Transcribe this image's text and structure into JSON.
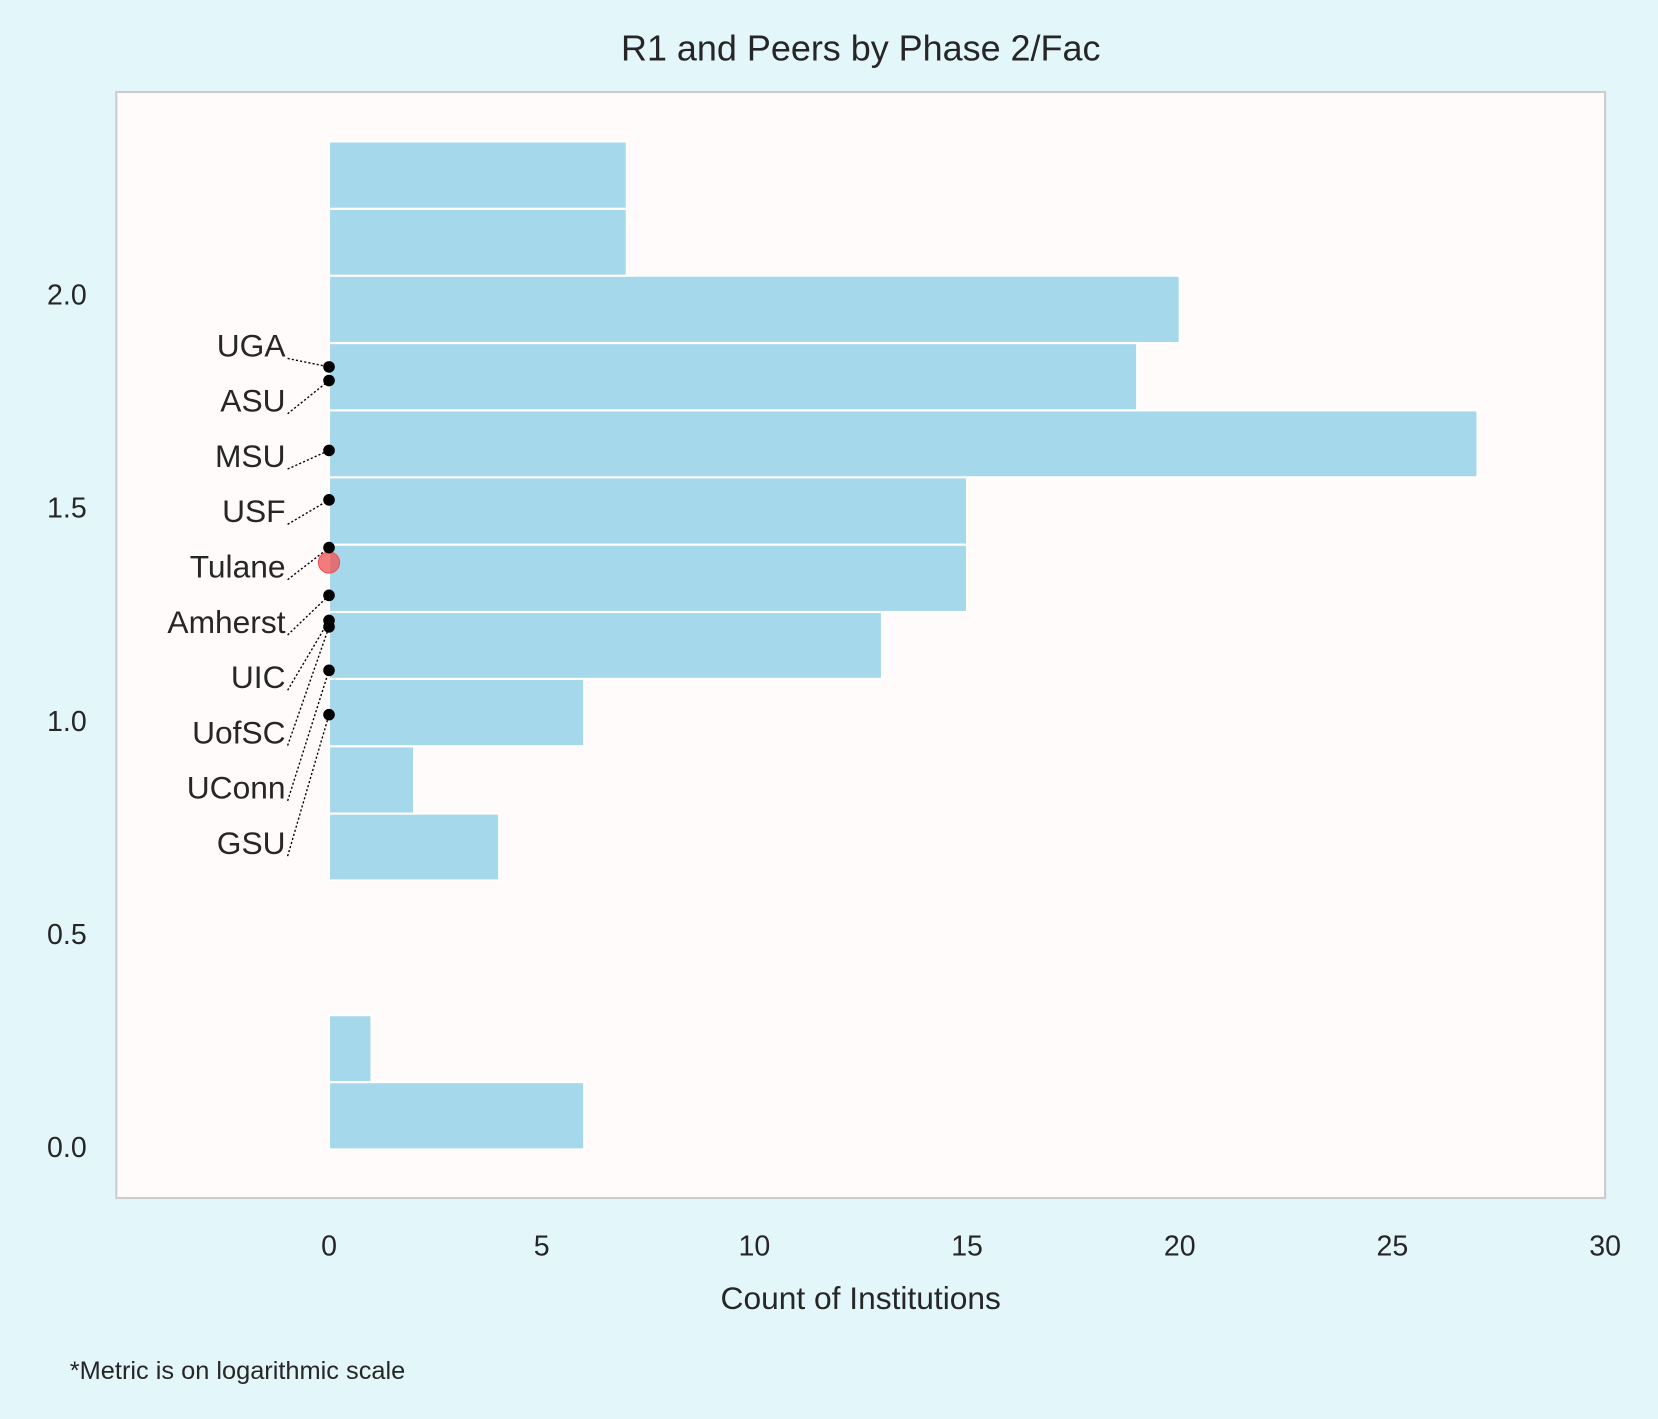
{
  "chart_data": {
    "type": "histogram",
    "orientation": "horizontal",
    "title": "R1 and Peers by Phase 2/Fac",
    "xlabel": "Count of Institutions",
    "footnote": "*Metric is on logarithmic scale",
    "bins": [
      0,
      0.158,
      0.315,
      0.473,
      0.631,
      0.788,
      0.946,
      1.104,
      1.261,
      1.419,
      1.577,
      1.734,
      1.892,
      2.05,
      2.207,
      2.365
    ],
    "counts": [
      6,
      1,
      0,
      0,
      4,
      2,
      6,
      13,
      15,
      15,
      27,
      19,
      20,
      7,
      7
    ],
    "color": "#a6d8ec",
    "xlim": [
      -5,
      30
    ],
    "xticks": [
      0,
      5,
      10,
      15,
      20,
      25,
      30
    ],
    "ylim": [
      -0.114,
      2.481
    ],
    "yticks": [
      {
        "value": 0,
        "label": "0.0"
      },
      0.5,
      {
        "value": 1,
        "label": "1.0"
      },
      1.5,
      {
        "value": 2,
        "label": "2.0"
      }
    ],
    "grid": false,
    "points": [
      {
        "name": "UGA",
        "value": 1.836
      },
      {
        "name": "ASU",
        "value": 1.804
      },
      {
        "name": "MSU",
        "value": 1.64
      },
      {
        "name": "USF",
        "value": 1.524
      },
      {
        "name": "Tulane",
        "value": 1.412
      },
      {
        "name": "Amherst",
        "value": 1.3
      },
      {
        "name": "UIC",
        "value": 1.241
      },
      {
        "name": "UofSC",
        "value": 1.226
      },
      {
        "name": "UConn",
        "value": 1.124
      },
      {
        "name": "GSU",
        "value": 1.02
      }
    ],
    "point_color": "#000000",
    "highlight": {
      "value": 1.377,
      "color": "#f05050"
    }
  }
}
